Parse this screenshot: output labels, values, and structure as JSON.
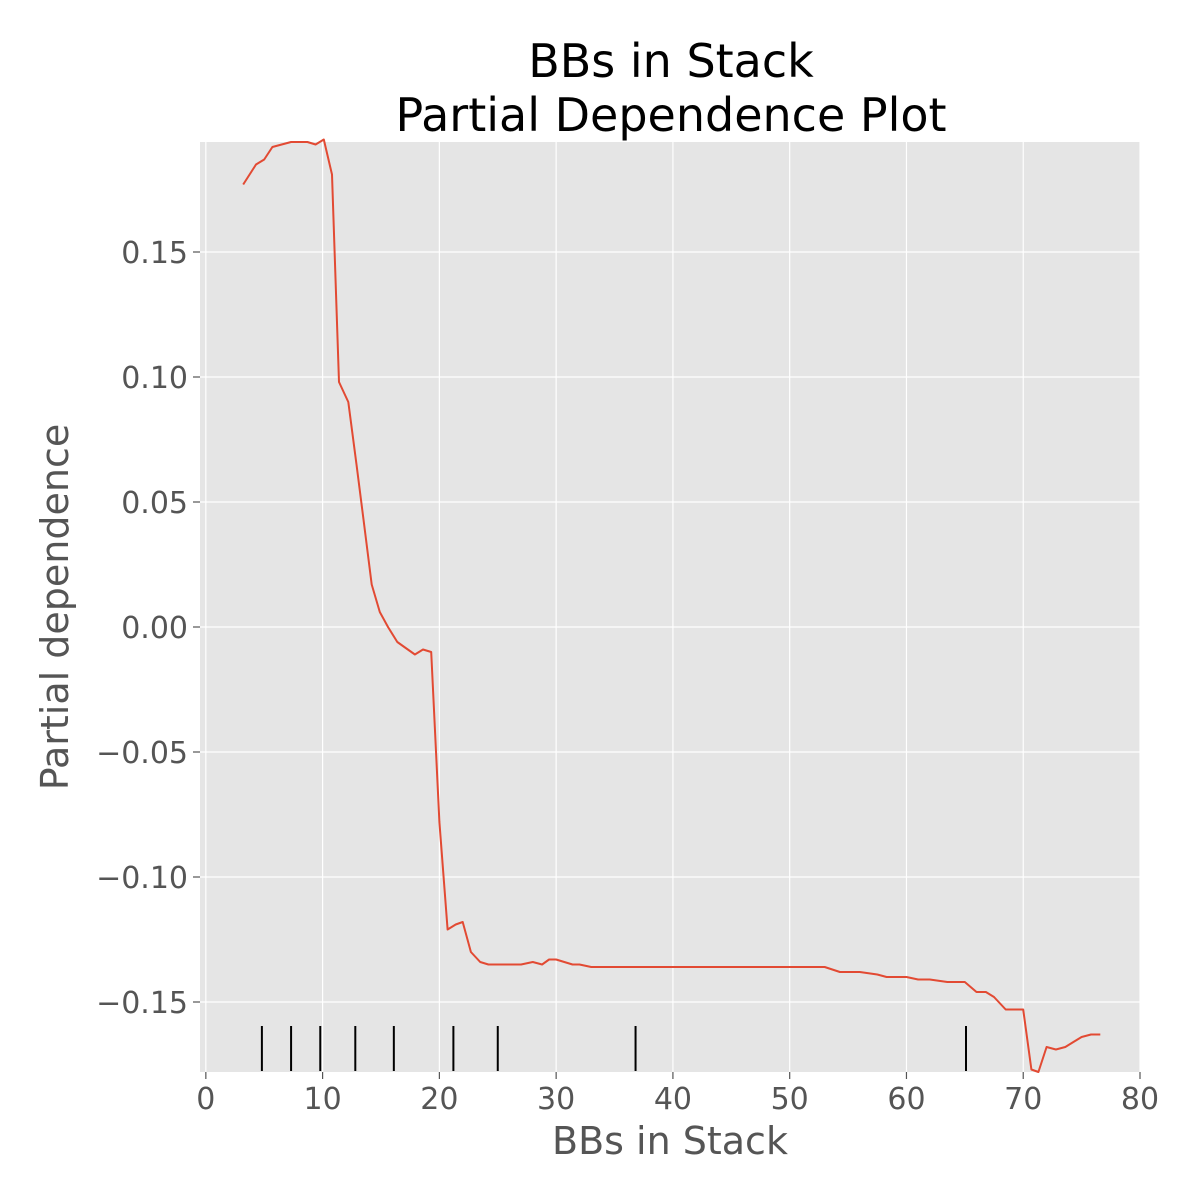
{
  "chart_data": {
    "type": "line",
    "title": [
      "BBs in Stack",
      "Partial Dependence Plot"
    ],
    "xlabel": "BBs in Stack",
    "ylabel": "Partial dependence",
    "xlim": [
      -0.5,
      80
    ],
    "ylim": [
      -0.178,
      0.194
    ],
    "xticks": [
      0,
      10,
      20,
      30,
      40,
      50,
      60,
      70,
      80
    ],
    "xtick_labels": [
      "0",
      "10",
      "20",
      "30",
      "40",
      "50",
      "60",
      "70",
      "80"
    ],
    "yticks": [
      0.15,
      0.1,
      0.05,
      0.0,
      -0.05,
      -0.1,
      -0.15
    ],
    "ytick_labels": [
      "0.15",
      "0.10",
      "0.05",
      "0.00",
      "−0.05",
      "−0.10",
      "−0.15"
    ],
    "grid": true,
    "background": "#e5e5e5",
    "line_color": "#e24a33",
    "rug_color": "#000000",
    "rug_x": [
      4.8,
      7.3,
      9.8,
      12.8,
      16.1,
      21.2,
      25.0,
      36.8,
      65.1
    ],
    "series": [
      {
        "x": [
          3.2,
          4.3,
          5.0,
          5.7,
          6.5,
          7.3,
          8.0,
          8.7,
          9.4,
          10.1,
          10.8,
          11.4,
          12.2,
          12.9,
          13.5,
          14.2,
          14.9,
          15.6,
          16.4,
          17.0,
          17.9,
          18.6,
          19.3,
          20.0,
          20.7,
          21.4,
          22.0,
          22.7,
          23.5,
          24.2,
          25.0,
          26.0,
          27.0,
          28.0,
          28.8,
          29.4,
          30.0,
          30.7,
          31.4,
          32.0,
          33.0,
          34.0,
          35.0,
          36.5,
          38.0,
          40.0,
          42.0,
          44.0,
          45.0,
          46.5,
          48.0,
          49.5,
          50.2,
          51.0,
          52.0,
          53.0,
          54.3,
          55.0,
          56.0,
          57.5,
          58.3,
          60.0,
          61.0,
          62.0,
          63.5,
          64.5,
          65.0,
          66.0,
          66.8,
          67.5,
          68.5,
          69.5,
          70.0,
          70.7,
          71.3,
          72.0,
          72.8,
          73.6,
          74.3,
          75.0,
          75.8,
          76.6
        ],
        "y": [
          0.177,
          0.185,
          0.187,
          0.192,
          0.193,
          0.194,
          0.194,
          0.194,
          0.193,
          0.195,
          0.181,
          0.098,
          0.09,
          0.065,
          0.043,
          0.017,
          0.006,
          0.0,
          -0.006,
          -0.008,
          -0.011,
          -0.009,
          -0.01,
          -0.078,
          -0.121,
          -0.119,
          -0.118,
          -0.13,
          -0.134,
          -0.135,
          -0.135,
          -0.135,
          -0.135,
          -0.134,
          -0.135,
          -0.133,
          -0.133,
          -0.134,
          -0.135,
          -0.135,
          -0.136,
          -0.136,
          -0.136,
          -0.136,
          -0.136,
          -0.136,
          -0.136,
          -0.136,
          -0.136,
          -0.136,
          -0.136,
          -0.136,
          -0.136,
          -0.136,
          -0.136,
          -0.136,
          -0.138,
          -0.138,
          -0.138,
          -0.139,
          -0.14,
          -0.14,
          -0.141,
          -0.141,
          -0.142,
          -0.142,
          -0.142,
          -0.146,
          -0.146,
          -0.148,
          -0.153,
          -0.153,
          -0.153,
          -0.177,
          -0.178,
          -0.168,
          -0.169,
          -0.168,
          -0.166,
          -0.164,
          -0.163,
          -0.163
        ]
      }
    ]
  }
}
